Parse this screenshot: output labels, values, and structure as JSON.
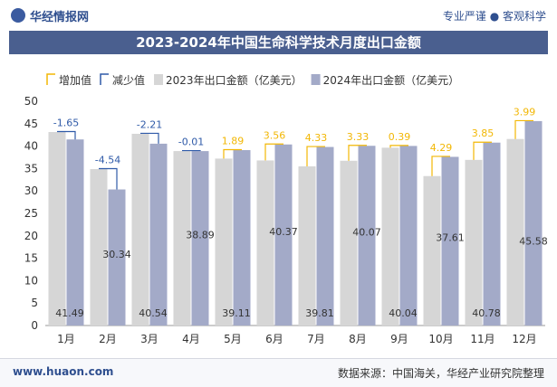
{
  "header": {
    "logo_text": "华经情报网",
    "tagline": "专业严谨 ● 客观科学"
  },
  "footer": {
    "website": "www.huaon.com",
    "source": "数据来源：中国海关，华经产业研究院整理"
  },
  "colors": {
    "series_2023": "#d6d6d6",
    "series_2024": "#a3aac8",
    "increase": "#f2b705",
    "decrease": "#2f5aa8",
    "title_bg": "#4a5f8f"
  },
  "chart_data": {
    "type": "bar",
    "title": "2023-2024年中国生命科学技术月度出口金额",
    "categories": [
      "1月",
      "2月",
      "3月",
      "4月",
      "5月",
      "6月",
      "7月",
      "8月",
      "9月",
      "10月",
      "11月",
      "12月"
    ],
    "series": [
      {
        "name": "2023年出口金额（亿美元）",
        "values": [
          43.14,
          34.88,
          42.75,
          38.9,
          37.22,
          36.81,
          35.48,
          36.74,
          39.65,
          33.32,
          36.93,
          41.59
        ]
      },
      {
        "name": "2024年出口金额（亿美元）",
        "values": [
          41.49,
          30.34,
          40.54,
          38.89,
          39.11,
          40.37,
          39.81,
          40.07,
          40.04,
          37.61,
          40.78,
          45.58
        ]
      }
    ],
    "change": {
      "labels": [
        "-1.65",
        "-4.54",
        "-2.21",
        "-0.01",
        "1.89",
        "3.56",
        "4.33",
        "3.33",
        "0.39",
        "4.29",
        "3.85",
        "3.99"
      ],
      "values": [
        -1.65,
        -4.54,
        -2.21,
        -0.01,
        1.89,
        3.56,
        4.33,
        3.33,
        0.39,
        4.29,
        3.85,
        3.99
      ]
    },
    "legend": {
      "increase": "增加值",
      "decrease": "减少值",
      "placement": "top-left"
    },
    "ylim": [
      0,
      50
    ],
    "yticks": [
      0,
      5,
      10,
      15,
      20,
      25,
      30,
      35,
      40,
      45,
      50
    ],
    "grid": false
  }
}
